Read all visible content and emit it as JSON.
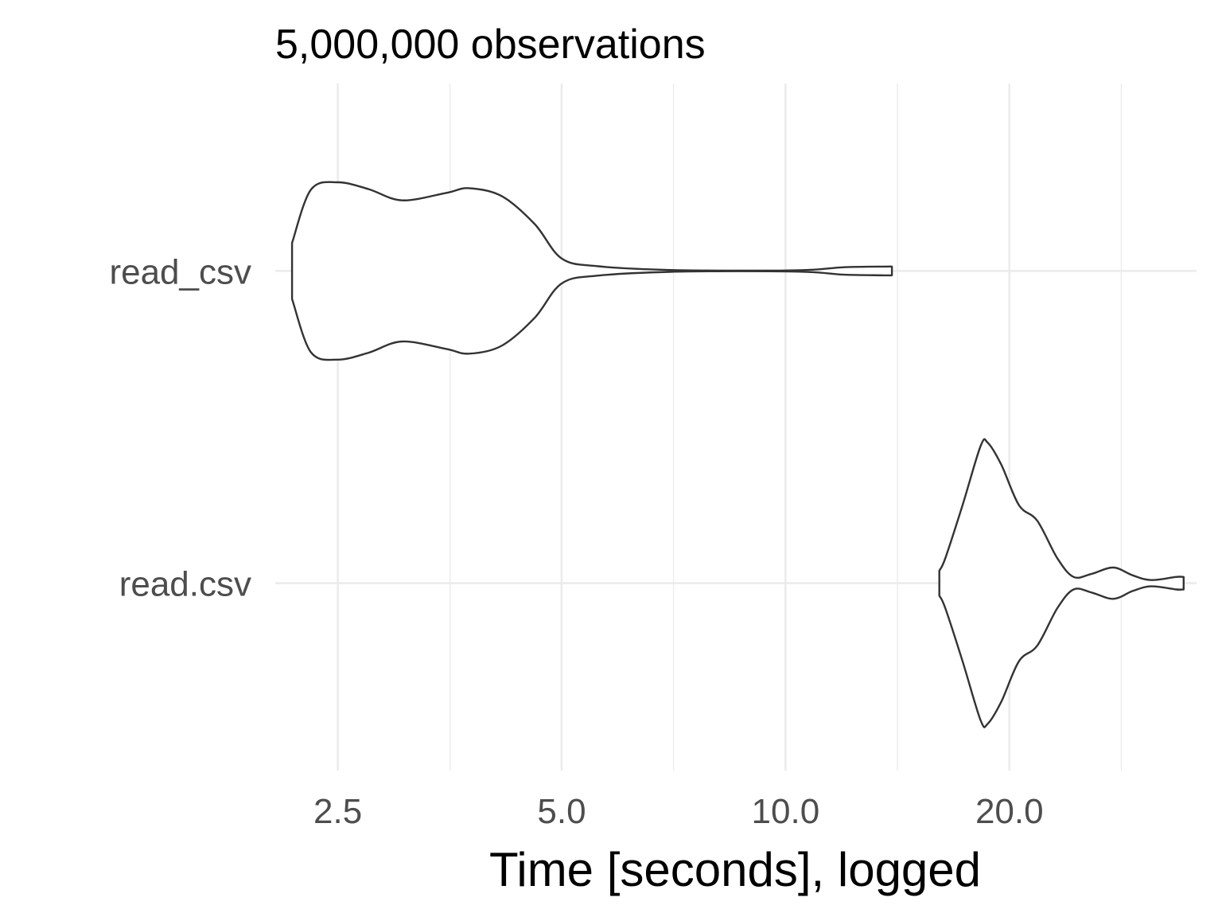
{
  "chart_data": {
    "type": "violin",
    "title": "5,000,000 observations",
    "xlabel": "Time [seconds], logged",
    "ylabel": "",
    "x_scale": "log",
    "xlim": [
      2.06,
      35.7
    ],
    "x_ticks": [
      2.5,
      5.0,
      10.0,
      20.0
    ],
    "x_tick_labels": [
      "2.5",
      "5.0",
      "10.0",
      "20.0"
    ],
    "x_minor_ticks": [
      3.54,
      7.07,
      14.14,
      28.28
    ],
    "categories": [
      "read.csv",
      "read_csv"
    ],
    "grid": true,
    "legend": "none",
    "series": [
      {
        "name": "read_csv",
        "density_max_halfwidth": 0.284,
        "density": [
          [
            2.17,
            0.09
          ],
          [
            2.3,
            0.26
          ],
          [
            2.5,
            0.284
          ],
          [
            2.75,
            0.262
          ],
          [
            3.05,
            0.226
          ],
          [
            3.5,
            0.25
          ],
          [
            3.75,
            0.265
          ],
          [
            4.15,
            0.24
          ],
          [
            4.6,
            0.15
          ],
          [
            5.0,
            0.04
          ],
          [
            5.6,
            0.015
          ],
          [
            7.0,
            0.003
          ],
          [
            9.5,
            0.001
          ],
          [
            10.9,
            0.004
          ],
          [
            12.0,
            0.012
          ],
          [
            13.6,
            0.014
          ],
          [
            13.9,
            0.014
          ]
        ]
      },
      {
        "name": "read.csv",
        "density_max_halfwidth": 0.45,
        "density": [
          [
            16.1,
            0.04
          ],
          [
            16.4,
            0.08
          ],
          [
            17.3,
            0.25
          ],
          [
            18.3,
            0.44
          ],
          [
            18.7,
            0.45
          ],
          [
            19.5,
            0.38
          ],
          [
            20.6,
            0.25
          ],
          [
            21.8,
            0.2
          ],
          [
            23.2,
            0.08
          ],
          [
            24.4,
            0.02
          ],
          [
            25.8,
            0.03
          ],
          [
            27.6,
            0.05
          ],
          [
            29.3,
            0.025
          ],
          [
            31.0,
            0.01
          ],
          [
            33.5,
            0.02
          ],
          [
            34.3,
            0.02
          ]
        ]
      }
    ]
  }
}
